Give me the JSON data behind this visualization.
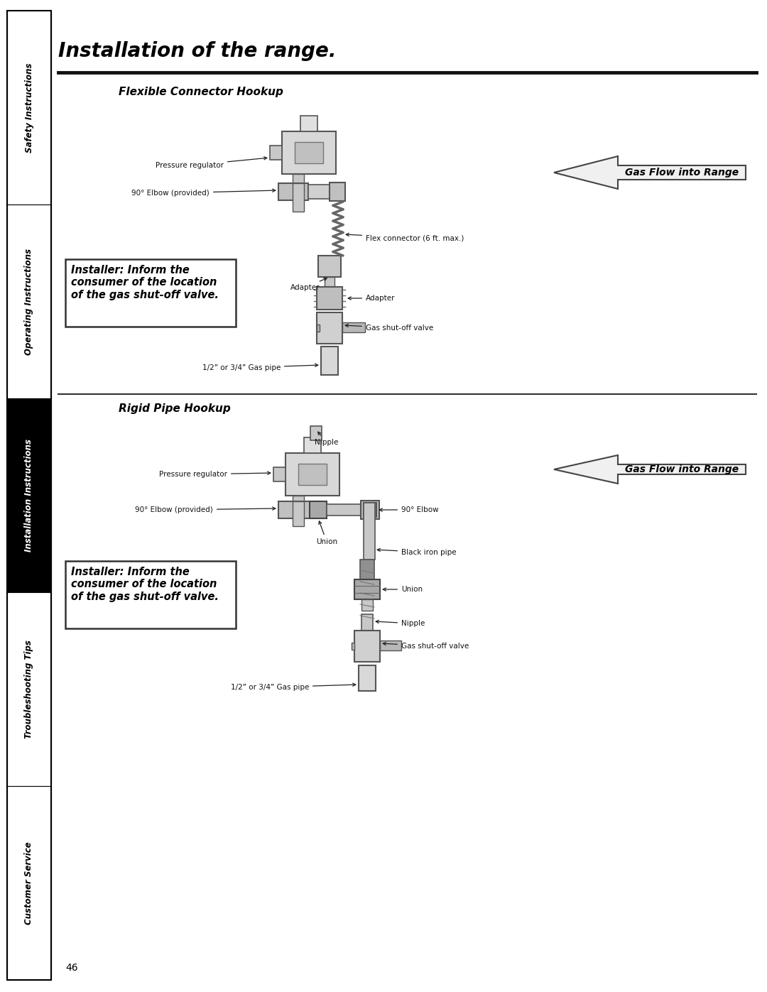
{
  "title": "Installation of the range.",
  "sidebar_labels": [
    "Safety Instructions",
    "Operating Instructions",
    "Installation Instructions",
    "Troubleshooting Tips",
    "Customer Service"
  ],
  "sidebar_active_idx": 2,
  "sidebar_bg": [
    "#ffffff",
    "#ffffff",
    "#000000",
    "#ffffff",
    "#ffffff"
  ],
  "sidebar_fg": [
    "#000000",
    "#000000",
    "#ffffff",
    "#000000",
    "#000000"
  ],
  "section1_title": "Flexible Connector Hookup",
  "gas_flow_label": "Gas Flow into Range",
  "section1_installer_box": "Installer: Inform the\nconsumer of the location\nof the gas shut-off valve.",
  "section2_title": "Rigid Pipe Hookup",
  "section2_installer_box": "Installer: Inform the\nconsumer of the location\nof the gas shut-off valve.",
  "page_number": "46",
  "bg_color": "#ffffff",
  "text_color": "#000000",
  "label_fontsize": 7.5,
  "title_fontsize": 20,
  "section_title_fontsize": 11
}
